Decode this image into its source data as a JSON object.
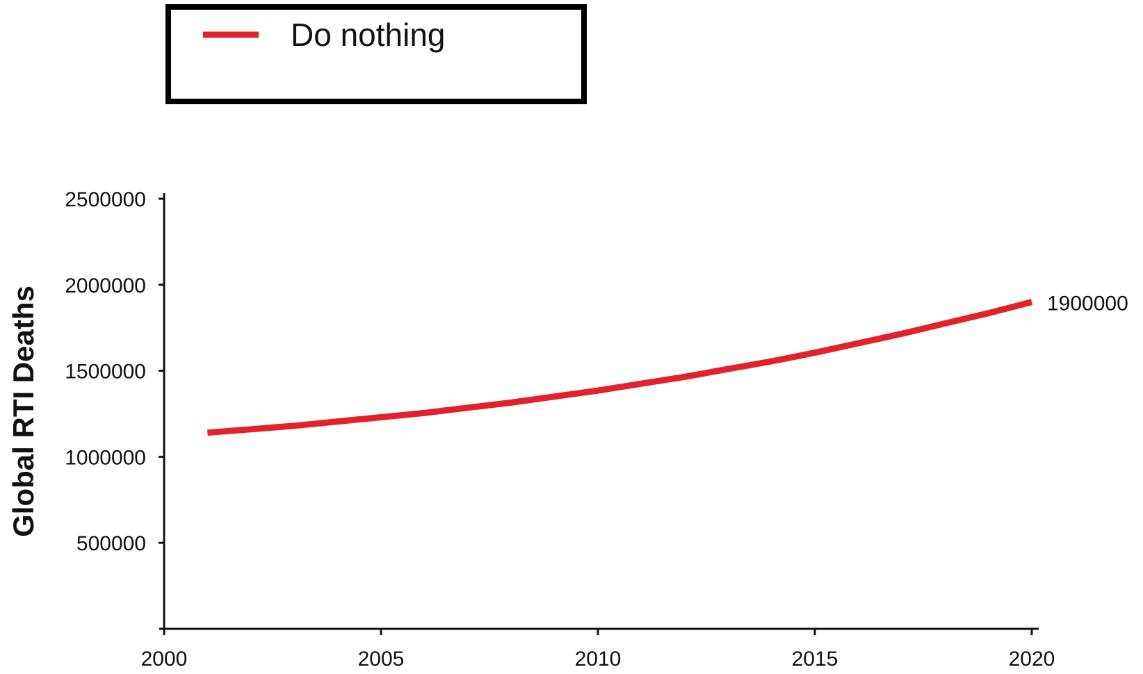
{
  "chart_data": {
    "type": "line",
    "title": "",
    "xlabel": "",
    "ylabel": "Global RTI Deaths",
    "xlim": [
      2000,
      2020
    ],
    "ylim": [
      0,
      2500000
    ],
    "xticks": [
      2000,
      2005,
      2010,
      2015,
      2020
    ],
    "yticks": [
      500000,
      1000000,
      1500000,
      2000000,
      2500000
    ],
    "xtick_labels": [
      "2000",
      "2005",
      "2010",
      "2015",
      "2020"
    ],
    "ytick_labels": [
      "500000",
      "1000000",
      "1500000",
      "2000000",
      "2500000"
    ],
    "grid": false,
    "legend": {
      "placement": "top-left",
      "entries": [
        {
          "label": "Do nothing",
          "color": "#e3212b"
        }
      ]
    },
    "series": [
      {
        "name": "Do nothing",
        "color": "#e3212b",
        "x": [
          2001,
          2002,
          2003,
          2004,
          2005,
          2006,
          2007,
          2008,
          2009,
          2010,
          2011,
          2012,
          2013,
          2014,
          2015,
          2016,
          2017,
          2018,
          2019,
          2020
        ],
        "y": [
          1140000,
          1160000,
          1180000,
          1205000,
          1230000,
          1255000,
          1285000,
          1315000,
          1350000,
          1385000,
          1425000,
          1465000,
          1510000,
          1555000,
          1605000,
          1660000,
          1715000,
          1775000,
          1835000,
          1900000
        ]
      }
    ],
    "annotations": [
      {
        "text": "1900000",
        "x": 2020,
        "y": 1900000
      }
    ]
  }
}
